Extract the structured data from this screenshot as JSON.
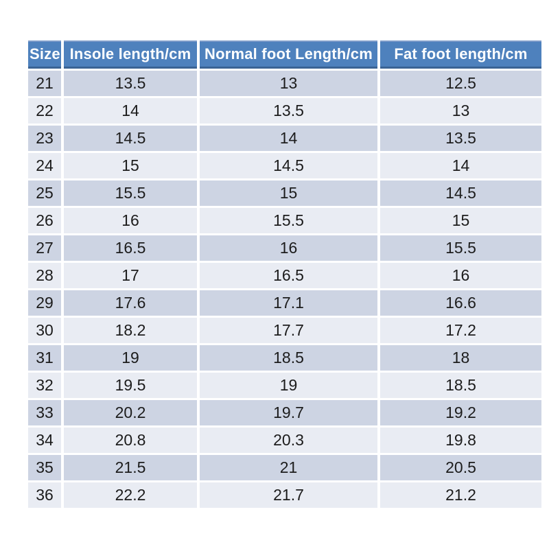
{
  "colors": {
    "header_bg": "#4E81BD",
    "header_top_border": "#7E9CC9",
    "header_bottom_border": "#3A6394",
    "row_dark": "#CDD4E3",
    "row_light": "#E9ECF3",
    "header_text": "#FFFFFF",
    "cell_text": "#1C1C1C",
    "page_bg": "#FFFFFF"
  },
  "chart_data": {
    "type": "table",
    "columns": [
      "Size",
      "Insole length/cm",
      "Normal foot Length/cm",
      "Fat foot length/cm"
    ],
    "rows": [
      [
        "21",
        "13.5",
        "13",
        "12.5"
      ],
      [
        "22",
        "14",
        "13.5",
        "13"
      ],
      [
        "23",
        "14.5",
        "14",
        "13.5"
      ],
      [
        "24",
        "15",
        "14.5",
        "14"
      ],
      [
        "25",
        "15.5",
        "15",
        "14.5"
      ],
      [
        "26",
        "16",
        "15.5",
        "15"
      ],
      [
        "27",
        "16.5",
        "16",
        "15.5"
      ],
      [
        "28",
        "17",
        "16.5",
        "16"
      ],
      [
        "29",
        "17.6",
        "17.1",
        "16.6"
      ],
      [
        "30",
        "18.2",
        "17.7",
        "17.2"
      ],
      [
        "31",
        "19",
        "18.5",
        "18"
      ],
      [
        "32",
        "19.5",
        "19",
        "18.5"
      ],
      [
        "33",
        "20.2",
        "19.7",
        "19.2"
      ],
      [
        "34",
        "20.8",
        "20.3",
        "19.8"
      ],
      [
        "35",
        "21.5",
        "21",
        "20.5"
      ],
      [
        "36",
        "22.2",
        "21.7",
        "21.2"
      ]
    ]
  }
}
